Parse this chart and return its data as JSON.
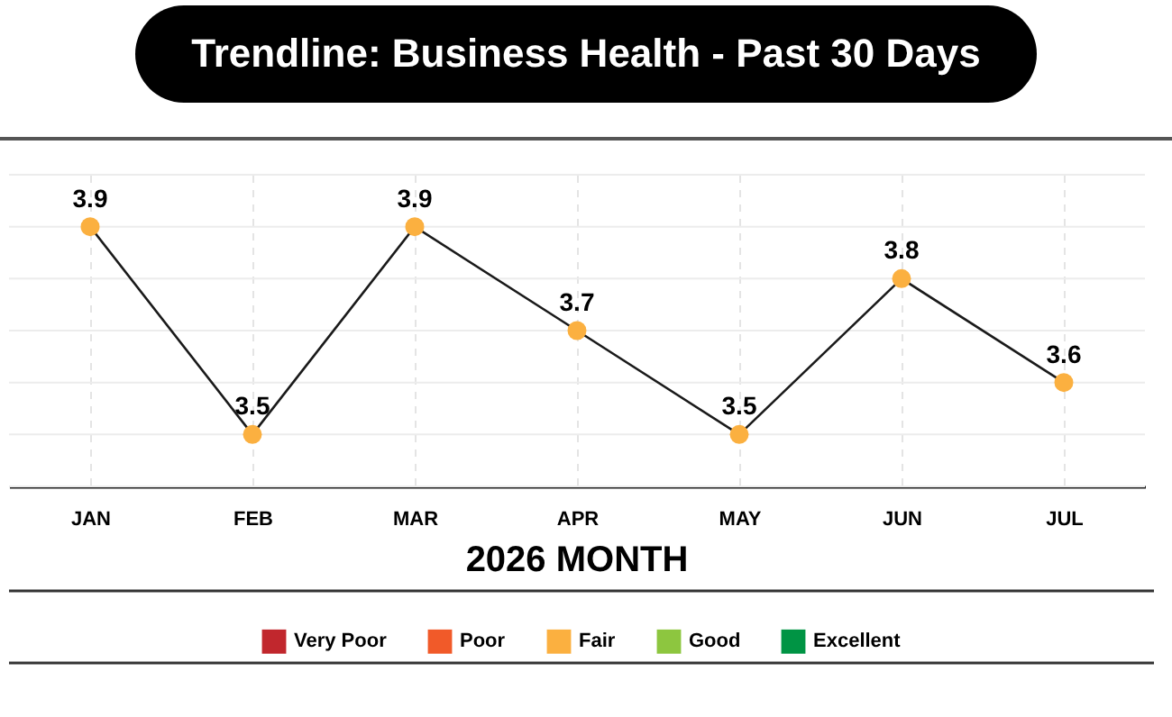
{
  "chart_data": {
    "type": "line",
    "title": "Trendline: Business Health - Past 30 Days",
    "xlabel": "2026 MONTH",
    "categories": [
      "JAN",
      "FEB",
      "MAR",
      "APR",
      "MAY",
      "JUN",
      "JUL"
    ],
    "series": [
      {
        "name": "Very Poor",
        "color": "#c1272d",
        "values": [
          null,
          null,
          null,
          null,
          null,
          null,
          null
        ]
      },
      {
        "name": "Poor",
        "color": "#f15a29",
        "values": [
          null,
          null,
          null,
          null,
          null,
          null,
          null
        ]
      },
      {
        "name": "Fair",
        "color": "#fbb040",
        "values": [
          3.9,
          3.5,
          3.9,
          3.7,
          3.5,
          3.8,
          3.6
        ]
      },
      {
        "name": "Good",
        "color": "#8dc63f",
        "values": [
          null,
          null,
          null,
          null,
          null,
          null,
          null
        ]
      },
      {
        "name": "Excellent",
        "color": "#009444",
        "values": [
          null,
          null,
          null,
          null,
          null,
          null,
          null
        ]
      }
    ],
    "ylim": [
      3.4,
      4.0
    ],
    "yticks": [
      {
        "value": 3.4,
        "label": null
      },
      {
        "value": 3.5,
        "label": null
      },
      {
        "value": 3.6,
        "label": null
      },
      {
        "value": 3.7,
        "label": null
      },
      {
        "value": 3.8,
        "label": null
      },
      {
        "value": 3.9,
        "label": null
      },
      {
        "value": 4.0,
        "label": null
      }
    ],
    "tick_labels": "x",
    "grid": true,
    "legend": "bottom",
    "marker": "circle",
    "line_style": "solid",
    "data_labels": true
  }
}
